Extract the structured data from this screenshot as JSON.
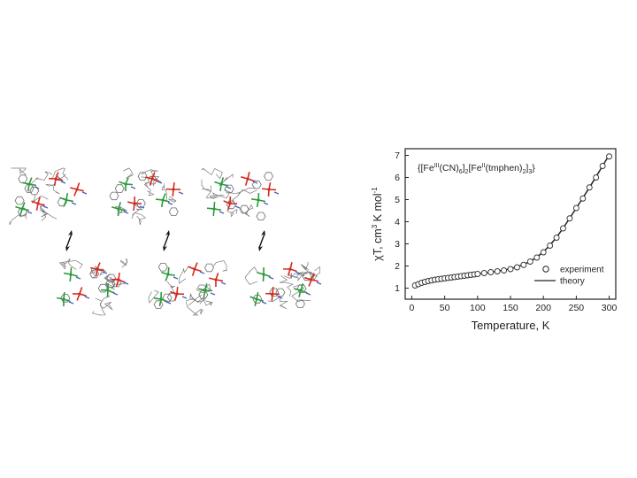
{
  "chart_data": {
    "type": "scatter",
    "title_formula": {
      "open": "{[Fe",
      "ox1": "III",
      "mid1": "(CN)",
      "sub6": "6",
      "bracket1": "]",
      "sub2a": "2",
      "mid2": "[Fe",
      "ox2": "II",
      "mid3": "(tmphen)",
      "sub2b": "2",
      "bracket2": "]",
      "sub3": "3",
      "close": "}"
    },
    "xlabel": "Temperature, K",
    "ylabel": {
      "base": "χT, cm",
      "exp3": "3",
      "mid": " K mol",
      "expneg": "-1"
    },
    "xlim": [
      -10,
      310
    ],
    "ylim": [
      0.5,
      7.3
    ],
    "xticks": [
      "0",
      "50",
      "100",
      "150",
      "200",
      "250",
      "300"
    ],
    "yticks": [
      "1",
      "2",
      "3",
      "4",
      "5",
      "6",
      "7"
    ],
    "legend_position": "bottom-right",
    "series": [
      {
        "name": "experiment",
        "style": "open-circles",
        "x": [
          5,
          10,
          15,
          20,
          25,
          30,
          35,
          40,
          45,
          50,
          55,
          60,
          65,
          70,
          75,
          80,
          85,
          90,
          95,
          100,
          110,
          120,
          130,
          140,
          150,
          160,
          170,
          180,
          190,
          200,
          210,
          220,
          230,
          240,
          250,
          260,
          270,
          280,
          290,
          300
        ],
        "y": [
          1.12,
          1.18,
          1.24,
          1.28,
          1.32,
          1.35,
          1.38,
          1.4,
          1.42,
          1.44,
          1.46,
          1.48,
          1.5,
          1.52,
          1.54,
          1.56,
          1.58,
          1.6,
          1.62,
          1.64,
          1.68,
          1.72,
          1.76,
          1.8,
          1.86,
          1.94,
          2.05,
          2.2,
          2.38,
          2.62,
          2.92,
          3.28,
          3.7,
          4.15,
          4.62,
          5.05,
          5.55,
          6.0,
          6.52,
          6.95
        ]
      },
      {
        "name": "theory",
        "style": "line",
        "x": [
          5,
          20,
          40,
          60,
          80,
          100,
          120,
          140,
          150,
          160,
          170,
          180,
          190,
          200,
          210,
          220,
          230,
          240,
          250,
          260,
          270,
          280,
          290,
          300
        ],
        "y": [
          1.1,
          1.28,
          1.4,
          1.48,
          1.56,
          1.64,
          1.72,
          1.82,
          1.88,
          1.96,
          2.07,
          2.21,
          2.4,
          2.64,
          2.94,
          3.3,
          3.71,
          4.16,
          4.62,
          5.08,
          5.55,
          6.03,
          6.52,
          7.02
        ]
      }
    ]
  },
  "structure_image": {
    "description_icon": "molecular-structure-illustration",
    "colors": {
      "bonds": "#7a7a7a",
      "iron_red": "#d42a1e",
      "iron_green": "#2a9a3a",
      "nitrogen_blue": "#4a5ec8",
      "arrow": "#111111"
    }
  }
}
